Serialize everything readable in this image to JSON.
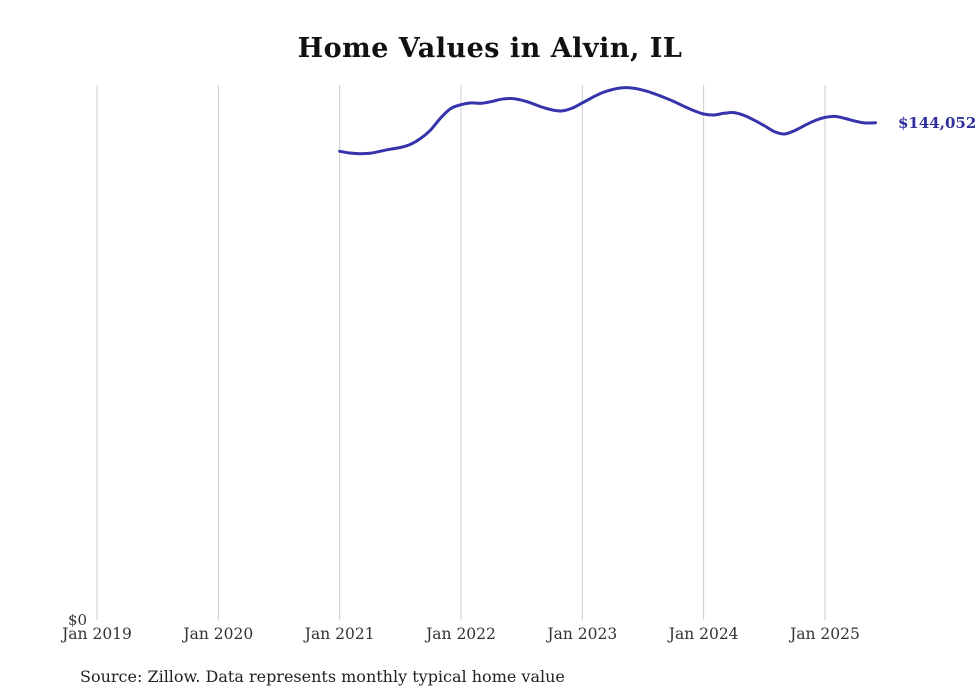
{
  "title": "Home Values in Alvin, IL",
  "source_note": "Source: Zillow. Data represents monthly typical home value",
  "end_label": "$144,052",
  "y_zero_label": "$0",
  "colors": {
    "line": "#3534ac",
    "end_label": "#2f2f9d",
    "gridline": "#cccccc",
    "title_text": "#111111",
    "tick_text": "#333333"
  },
  "chart_data": {
    "type": "line",
    "title": "Home Values in Alvin, IL",
    "xlabel": "",
    "ylabel": "",
    "unit": "USD",
    "grid": "vertical-only",
    "legend": "none",
    "ylim": [
      0,
      155000
    ],
    "x_tick_labels": [
      "Jan 2019",
      "Jan 2020",
      "Jan 2021",
      "Jan 2022",
      "Jan 2023",
      "Jan 2024",
      "Jan 2025"
    ],
    "x_start": "2021-01",
    "x_end": "2025-06",
    "last_value": 144052,
    "last_value_label": "$144,052",
    "series": [
      {
        "name": "Typical home value",
        "monthly_values": [
          135800,
          135300,
          135100,
          135200,
          135800,
          136400,
          136900,
          137800,
          139500,
          142000,
          145500,
          148200,
          149300,
          149800,
          149700,
          150200,
          150900,
          151100,
          150600,
          149700,
          148600,
          147800,
          147500,
          148300,
          149800,
          151400,
          152800,
          153700,
          154200,
          154100,
          153500,
          152600,
          151500,
          150300,
          148900,
          147600,
          146600,
          146300,
          146800,
          147000,
          146200,
          144800,
          143200,
          141500,
          140800,
          141800,
          143300,
          144700,
          145600,
          145900,
          145300,
          144500,
          144000,
          144052
        ]
      }
    ]
  }
}
